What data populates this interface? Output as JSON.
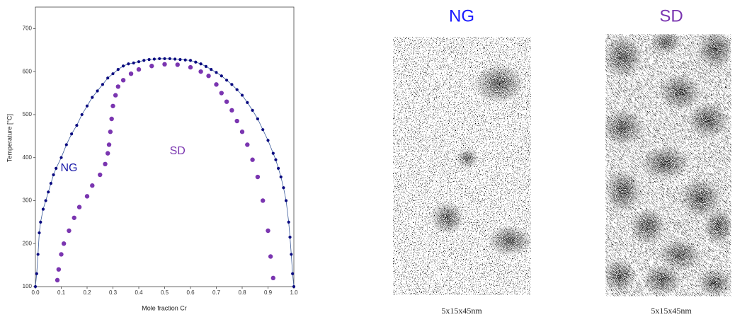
{
  "chart_data": {
    "type": "scatter",
    "xlabel": "Mole fraction Cr",
    "ylabel": "Temperature [°C]",
    "xlim": [
      0,
      1
    ],
    "ylim": [
      100,
      750
    ],
    "xticks": [
      {
        "value": 0,
        "label": "0.0"
      },
      0.1,
      0.2,
      0.3,
      0.4,
      0.5,
      0.6,
      0.7,
      0.8,
      0.9,
      {
        "value": 1,
        "label": "1.0"
      }
    ],
    "yticks": [
      100,
      200,
      300,
      400,
      500,
      600,
      700
    ],
    "series": [
      {
        "name": "NG",
        "color": "#0a0a80",
        "label_color": "#1a1aa8",
        "line": true,
        "x": [
          0.0,
          0.005,
          0.01,
          0.015,
          0.02,
          0.03,
          0.04,
          0.05,
          0.06,
          0.07,
          0.08,
          0.1,
          0.12,
          0.14,
          0.16,
          0.18,
          0.2,
          0.22,
          0.24,
          0.26,
          0.28,
          0.3,
          0.32,
          0.34,
          0.36,
          0.38,
          0.4,
          0.42,
          0.44,
          0.46,
          0.48,
          0.5,
          0.52,
          0.54,
          0.56,
          0.58,
          0.6,
          0.62,
          0.64,
          0.66,
          0.68,
          0.7,
          0.72,
          0.74,
          0.76,
          0.78,
          0.8,
          0.82,
          0.84,
          0.86,
          0.88,
          0.9,
          0.92,
          0.93,
          0.94,
          0.95,
          0.96,
          0.97,
          0.98,
          0.985,
          0.99,
          0.995,
          1.0
        ],
        "values": [
          100,
          130,
          175,
          225,
          250,
          280,
          300,
          320,
          340,
          360,
          375,
          400,
          430,
          455,
          475,
          500,
          520,
          540,
          555,
          570,
          585,
          595,
          605,
          613,
          618,
          620,
          623,
          626,
          628,
          629,
          630,
          630,
          630,
          629,
          628,
          627,
          626,
          622,
          618,
          612,
          605,
          598,
          590,
          580,
          570,
          558,
          545,
          528,
          510,
          490,
          465,
          440,
          410,
          395,
          375,
          355,
          330,
          300,
          250,
          215,
          175,
          130,
          100
        ]
      },
      {
        "name": "SD",
        "color": "#7a35b0",
        "label_color": "#7a35b0",
        "line": false,
        "x": [
          0.085,
          0.09,
          0.1,
          0.11,
          0.13,
          0.15,
          0.17,
          0.2,
          0.22,
          0.25,
          0.27,
          0.28,
          0.285,
          0.29,
          0.295,
          0.3,
          0.31,
          0.32,
          0.34,
          0.37,
          0.4,
          0.45,
          0.5,
          0.55,
          0.6,
          0.64,
          0.67,
          0.7,
          0.72,
          0.74,
          0.76,
          0.78,
          0.8,
          0.82,
          0.84,
          0.86,
          0.88,
          0.9,
          0.91,
          0.92
        ],
        "values": [
          115,
          140,
          175,
          200,
          230,
          260,
          285,
          310,
          335,
          360,
          385,
          410,
          430,
          460,
          490,
          520,
          545,
          565,
          580,
          595,
          605,
          613,
          617,
          616,
          610,
          600,
          590,
          570,
          550,
          530,
          510,
          485,
          460,
          430,
          395,
          355,
          300,
          230,
          170,
          120
        ]
      }
    ]
  },
  "images": [
    {
      "title": "NG",
      "title_color": "#1a1aff",
      "caption": "5x15x45nm"
    },
    {
      "title": "SD",
      "title_color": "#7a35b0",
      "caption": "5x15x45nm"
    }
  ]
}
